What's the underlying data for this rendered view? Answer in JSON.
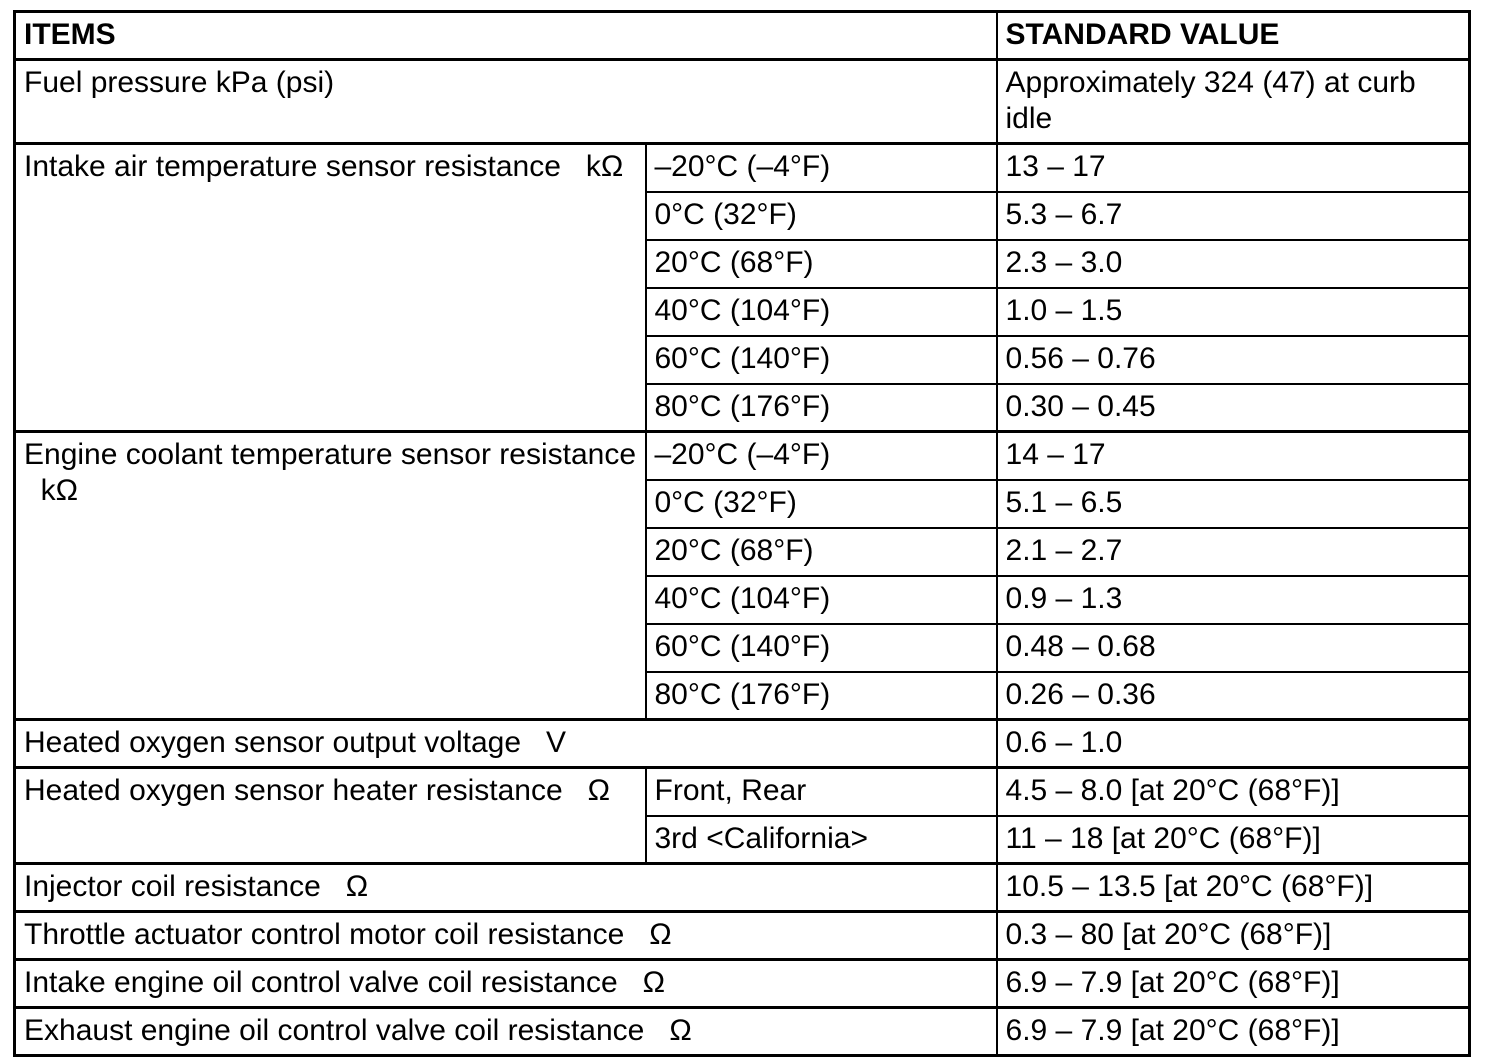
{
  "page": {
    "background_color": "#ffffff",
    "border_color": "#000000",
    "text_color": "#000000"
  },
  "table": {
    "headers": {
      "items": "ITEMS",
      "standard_value": "STANDARD VALUE"
    },
    "sections": [
      {
        "item": "Fuel pressure kPa (psi)",
        "value": "Approximately 324 (47) at curb idle"
      },
      {
        "item": "Intake air temperature sensor resistance   kΩ",
        "conditions": [
          {
            "condition": "–20°C (–4°F)",
            "value": "13 – 17"
          },
          {
            "condition": "0°C (32°F)",
            "value": "5.3 – 6.7"
          },
          {
            "condition": "20°C (68°F)",
            "value": "2.3 – 3.0"
          },
          {
            "condition": "40°C (104°F)",
            "value": "1.0 – 1.5"
          },
          {
            "condition": "60°C (140°F)",
            "value": "0.56 – 0.76"
          },
          {
            "condition": "80°C (176°F)",
            "value": "0.30 – 0.45"
          }
        ]
      },
      {
        "item": "Engine coolant temperature sensor resistance   kΩ",
        "conditions": [
          {
            "condition": "–20°C (–4°F)",
            "value": "14 – 17"
          },
          {
            "condition": "0°C (32°F)",
            "value": "5.1 – 6.5"
          },
          {
            "condition": "20°C (68°F)",
            "value": "2.1 – 2.7"
          },
          {
            "condition": "40°C (104°F)",
            "value": "0.9 – 1.3"
          },
          {
            "condition": "60°C (140°F)",
            "value": "0.48 – 0.68"
          },
          {
            "condition": "80°C (176°F)",
            "value": "0.26 – 0.36"
          }
        ]
      },
      {
        "item": "Heated oxygen sensor output voltage   V",
        "value": "0.6 – 1.0"
      },
      {
        "item": "Heated oxygen sensor heater resistance   Ω",
        "conditions": [
          {
            "condition": "Front, Rear",
            "value": "4.5 – 8.0 [at 20°C (68°F)]"
          },
          {
            "condition": "3rd <California>",
            "value": "11 – 18 [at 20°C (68°F)]"
          }
        ]
      },
      {
        "item": "Injector coil resistance   Ω",
        "value": "10.5 – 13.5 [at 20°C (68°F)]"
      },
      {
        "item": "Throttle actuator control motor coil resistance   Ω",
        "value": "0.3 – 80 [at 20°C (68°F)]"
      },
      {
        "item": "Intake engine oil control valve coil resistance   Ω",
        "value": "6.9 – 7.9 [at 20°C (68°F)]"
      },
      {
        "item": "Exhaust engine oil control valve coil resistance   Ω",
        "value": "6.9 – 7.9 [at 20°C (68°F)]"
      }
    ]
  }
}
